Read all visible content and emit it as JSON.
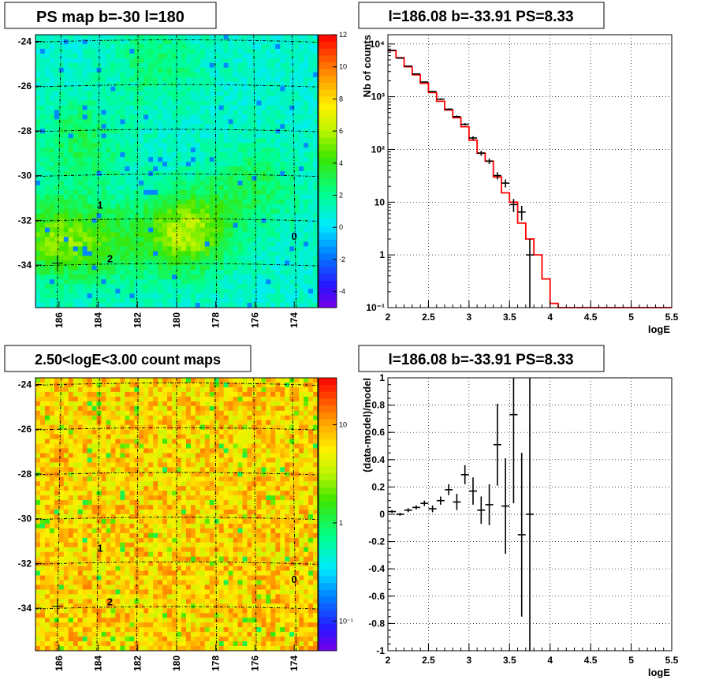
{
  "chart_data": [
    {
      "type": "heatmap",
      "title": "PS map b=-30 l=180",
      "colormap_name": "rainbow",
      "x_tick_labels": [
        "186",
        "184",
        "182",
        "180",
        "178",
        "176",
        "174"
      ],
      "x_ticks": [
        186,
        184,
        182,
        180,
        178,
        176,
        174
      ],
      "xlim": [
        187.2,
        172.8
      ],
      "y_tick_labels": [
        "-24",
        "-26",
        "-28",
        "-30",
        "-32",
        "-34"
      ],
      "y_ticks": [
        -24,
        -26,
        -28,
        -30,
        -32,
        -34
      ],
      "ylim": [
        -35.9,
        -23.7
      ],
      "colorbar": {
        "min": -5,
        "max": 12,
        "scale": "linear",
        "ticks": [
          -4,
          -2,
          0,
          2,
          4,
          6,
          8,
          10,
          12
        ],
        "tick_labels": [
          "-4",
          "-2",
          "0",
          "2",
          "4",
          "6",
          "8",
          "10",
          "12"
        ]
      },
      "background_level": 1,
      "hot_spots": [
        {
          "l": 179.5,
          "b": -32.5,
          "value": 6.0
        },
        {
          "l": 186.5,
          "b": -32.8,
          "value": 4.5
        },
        {
          "l": 183.8,
          "b": -33.0,
          "value": 3.5
        },
        {
          "l": 176.0,
          "b": -30.5,
          "value": 3.0
        },
        {
          "l": 185.0,
          "b": -28.5,
          "value": 3.0
        },
        {
          "l": 181.0,
          "b": -25.0,
          "value": 2.5
        }
      ],
      "point_labels": [
        {
          "text": "1",
          "l": 183.9,
          "b": -31.3
        },
        {
          "text": "2",
          "l": 183.4,
          "b": -33.7
        },
        {
          "text": "0",
          "l": 174.0,
          "b": -32.7
        }
      ]
    },
    {
      "type": "line",
      "title": "l=186.08 b=-33.91 PS=8.33",
      "xlabel": "logE",
      "ylabel": "Nb of counts",
      "xlim": [
        2.0,
        5.5
      ],
      "ylim": [
        0.1,
        15000
      ],
      "yscale": "log",
      "grid": true,
      "x_ticks": [
        2,
        2.5,
        3,
        3.5,
        4,
        4.5,
        5,
        5.5
      ],
      "x_tick_labels": [
        "2",
        "2.5",
        "3",
        "3.5",
        "4",
        "4.5",
        "5",
        "5.5"
      ],
      "y_ticks": [
        0.1,
        1,
        10,
        100,
        1000,
        10000
      ],
      "y_tick_labels": [
        "10⁻¹",
        "1",
        "10",
        "10²",
        "10³",
        "10⁴"
      ],
      "series": [
        {
          "color": "#ff0000",
          "style": "step",
          "bin_edges": [
            2.0,
            2.1,
            2.2,
            2.3,
            2.4,
            2.5,
            2.6,
            2.7,
            2.8,
            2.9,
            3.0,
            3.1,
            3.2,
            3.3,
            3.4,
            3.5,
            3.6,
            3.7,
            3.8,
            3.9,
            4.0,
            4.1,
            4.2,
            4.3,
            4.4,
            4.5,
            4.6,
            4.7,
            4.8,
            4.9,
            5.0,
            5.1,
            5.2,
            5.3,
            5.4,
            5.5
          ],
          "values": [
            7500,
            5500,
            3700,
            2600,
            1800,
            1200,
            820,
            560,
            400,
            270,
            150,
            85,
            60,
            30,
            15,
            10,
            4,
            2,
            1,
            0.35,
            0.12,
            0.1,
            0.1,
            0.1,
            0.1,
            0.1,
            0.1,
            0.1,
            0.1,
            0.1,
            0.1,
            0.1,
            0.1,
            0.1,
            0.1
          ]
        },
        {
          "color": "#000000",
          "style": "errorbar",
          "x": [
            2.05,
            2.15,
            2.25,
            2.35,
            2.45,
            2.55,
            2.65,
            2.75,
            2.85,
            2.95,
            3.05,
            3.15,
            3.25,
            3.35,
            3.45,
            3.55,
            3.65,
            3.75
          ],
          "y": [
            7600,
            5400,
            3800,
            2700,
            1900,
            1250,
            900,
            580,
            420,
            300,
            165,
            85,
            60,
            32,
            23,
            9,
            6.5,
            1
          ],
          "yerr_low": [
            7450,
            5300,
            3720,
            2650,
            1860,
            1210,
            870,
            560,
            400,
            285,
            152,
            76,
            53,
            27,
            19,
            6.5,
            4.5,
            0.1
          ],
          "yerr_high": [
            7750,
            5500,
            3880,
            2750,
            1940,
            1290,
            930,
            600,
            440,
            315,
            178,
            94,
            67,
            37,
            27,
            11.5,
            8.5,
            2
          ]
        }
      ]
    },
    {
      "type": "heatmap",
      "title": "2.50<logE<3.00 count maps",
      "colormap_name": "rainbow",
      "x_tick_labels": [
        "186",
        "184",
        "182",
        "180",
        "178",
        "176",
        "174"
      ],
      "x_ticks": [
        186,
        184,
        182,
        180,
        178,
        176,
        174
      ],
      "xlim": [
        187.2,
        172.8
      ],
      "y_tick_labels": [
        "-24",
        "-26",
        "-28",
        "-30",
        "-32",
        "-34"
      ],
      "y_ticks": [
        -24,
        -26,
        -28,
        -30,
        -32,
        -34
      ],
      "ylim": [
        -35.9,
        -23.7
      ],
      "colorbar": {
        "min": 0.05,
        "max": 30,
        "scale": "log",
        "ticks": [
          0.1,
          1,
          10
        ],
        "tick_labels": [
          "10⁻¹",
          "1",
          "10"
        ]
      },
      "background_level": 7,
      "point_labels": [
        {
          "text": "1",
          "l": 183.9,
          "b": -31.3
        },
        {
          "text": "2",
          "l": 183.4,
          "b": -33.7
        },
        {
          "text": "0",
          "l": 174.0,
          "b": -32.7
        }
      ]
    },
    {
      "type": "scatter",
      "title": "l=186.08 b=-33.91 PS=8.33",
      "xlabel": "logE",
      "ylabel": "(data-model)/model",
      "xlim": [
        2.0,
        5.5
      ],
      "ylim": [
        -1.0,
        1.0
      ],
      "grid": true,
      "x_ticks": [
        2,
        2.5,
        3,
        3.5,
        4,
        4.5,
        5,
        5.5
      ],
      "x_tick_labels": [
        "2",
        "2.5",
        "3",
        "3.5",
        "4",
        "4.5",
        "5",
        "5.5"
      ],
      "y_ticks": [
        -1,
        -0.8,
        -0.6,
        -0.4,
        -0.2,
        0,
        0.2,
        0.4,
        0.6,
        0.8,
        1
      ],
      "y_tick_labels": [
        "-1",
        "-0.8",
        "-0.6",
        "-0.4",
        "-0.2",
        "0",
        "0.2",
        "0.4",
        "0.6",
        "0.8",
        "1"
      ],
      "series": [
        {
          "color": "#000000",
          "style": "errorbar",
          "x": [
            2.05,
            2.15,
            2.25,
            2.35,
            2.45,
            2.55,
            2.65,
            2.75,
            2.85,
            2.95,
            3.05,
            3.15,
            3.25,
            3.35,
            3.45,
            3.55,
            3.65,
            3.75
          ],
          "y": [
            0.02,
            0.0,
            0.03,
            0.05,
            0.08,
            0.04,
            0.1,
            0.18,
            0.09,
            0.29,
            0.17,
            0.03,
            0.07,
            0.51,
            0.06,
            0.73,
            -0.15,
            0.0
          ],
          "yerr": [
            0.01,
            0.01,
            0.015,
            0.015,
            0.02,
            0.025,
            0.03,
            0.04,
            0.06,
            0.07,
            0.1,
            0.1,
            0.15,
            0.3,
            0.35,
            0.65,
            0.6,
            1.0
          ]
        }
      ]
    }
  ]
}
